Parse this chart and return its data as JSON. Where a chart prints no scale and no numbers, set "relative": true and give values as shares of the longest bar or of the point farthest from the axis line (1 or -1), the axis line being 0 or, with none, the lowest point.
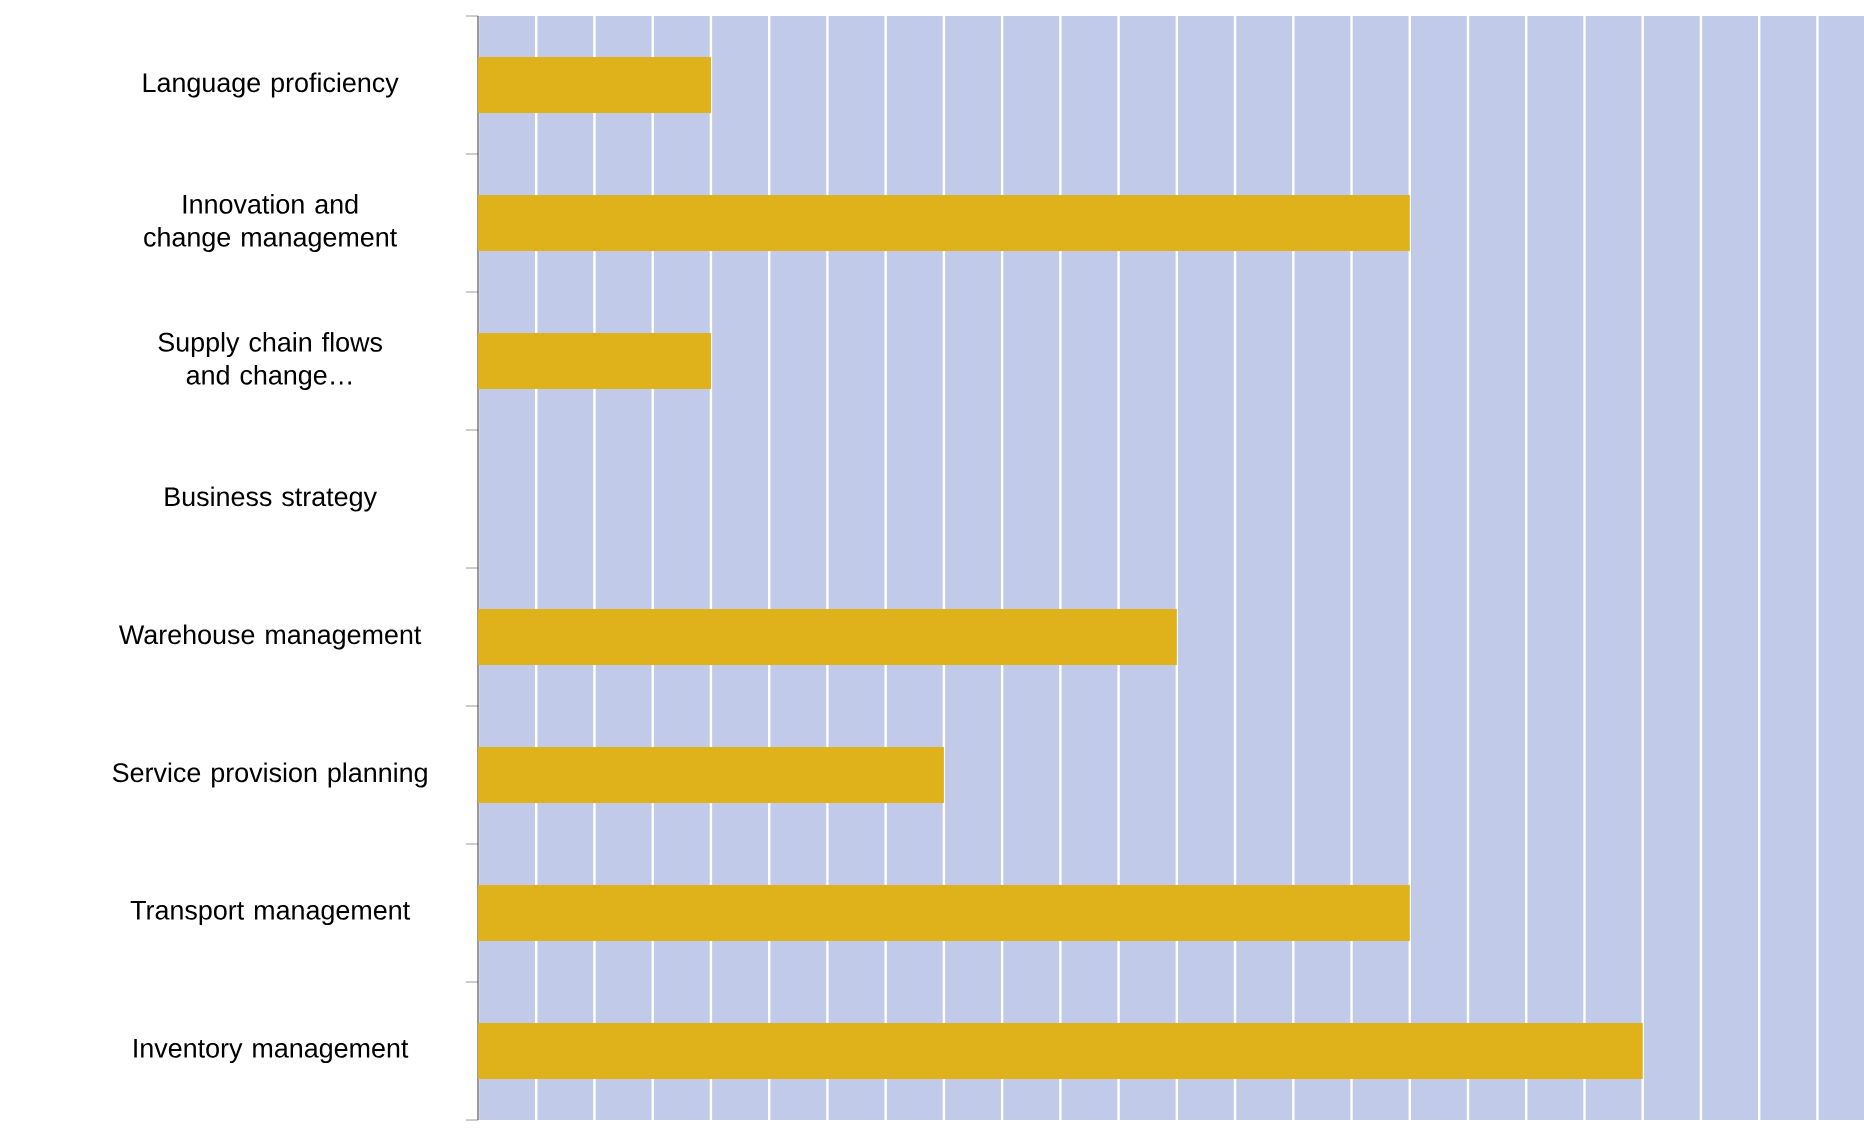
{
  "chart_data": {
    "type": "bar",
    "orientation": "horizontal",
    "relative": true,
    "grid": "x",
    "color": "#dfb11a",
    "categories": [
      "Language proficiency",
      "Innovation and change management",
      "Supply chain flows and change…",
      "Business strategy",
      "Warehouse management",
      "Service provision planning",
      "Transport management",
      "Inventory management"
    ],
    "values": [
      0.2,
      0.8,
      0.2,
      0,
      0.6,
      0.4,
      0.8,
      1.0
    ]
  }
}
